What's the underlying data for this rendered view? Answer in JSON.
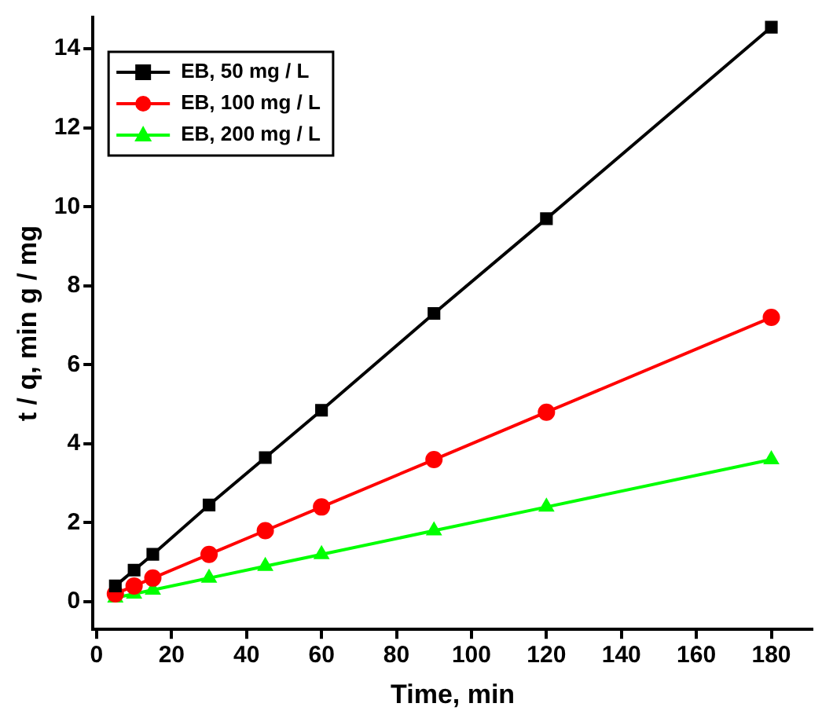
{
  "chart_data": {
    "type": "line",
    "xlabel": "Time, min",
    "ylabel": "t / q, min g / mg",
    "x": [
      5,
      10,
      15,
      30,
      45,
      60,
      90,
      120,
      180
    ],
    "series": [
      {
        "name": "EB, 50 mg / L",
        "color": "#000000",
        "marker": "square",
        "values": [
          0.4,
          0.8,
          1.2,
          2.45,
          3.65,
          4.85,
          7.3,
          9.7,
          14.55
        ]
      },
      {
        "name": "EB, 100 mg / L",
        "color": "#ff0000",
        "marker": "circle",
        "values": [
          0.2,
          0.4,
          0.6,
          1.2,
          1.8,
          2.4,
          3.6,
          4.8,
          7.2
        ]
      },
      {
        "name": "EB, 200 mg / L",
        "color": "#00ff00",
        "marker": "triangle",
        "values": [
          0.1,
          0.2,
          0.3,
          0.6,
          0.9,
          1.2,
          1.8,
          2.4,
          3.6
        ]
      }
    ],
    "xlim": [
      -1,
      191
    ],
    "xticks": [
      0,
      20,
      40,
      60,
      80,
      100,
      120,
      140,
      160,
      180
    ],
    "ylim": [
      -0.7,
      14.8
    ],
    "yticks": [
      0,
      2,
      4,
      6,
      8,
      10,
      12,
      14
    ],
    "grid": false,
    "legend": "top left",
    "line_style": "solid"
  }
}
